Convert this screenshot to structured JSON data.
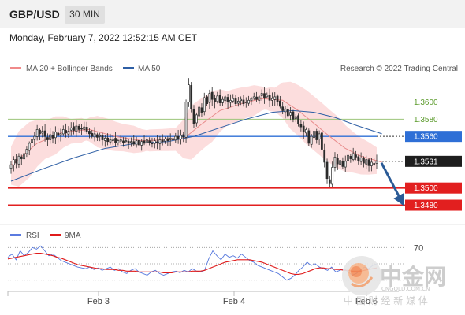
{
  "header": {
    "symbol": "GBP/USD",
    "timeframe": "30 MIN",
    "timestamp": "Monday, February 7, 2022 12:52:15 AM CET"
  },
  "colors": {
    "candle": "#2a2a2a",
    "candle_up": "#ffffff",
    "ma20": "#e88a8a",
    "bands_fill": "#fbd7d7",
    "ma50": "#2e5fa5",
    "resistance": "#9cc47a",
    "pivot": "#2e6fd6",
    "support": "#e21f1f",
    "arrow": "#2a5a96",
    "rsi": "#5577dd",
    "rsi_ma": "#e01b1b",
    "watermark": "#c8c8c8"
  },
  "chart_data": [
    {
      "type": "candlestick",
      "title": "GBP/USD",
      "timeframe": "30 MIN",
      "legend": [
        {
          "name": "MA 20 + Bollinger Bands",
          "color": "#f08a8a"
        },
        {
          "name": "MA 50",
          "color": "#2e5fa5"
        }
      ],
      "credit": "Research © 2022 Trading Central",
      "x_ticks": [
        "Feb 3",
        "Feb 4",
        "Feb 6"
      ],
      "ylim": [
        1.3464,
        1.3627
      ],
      "levels": [
        {
          "value": 1.36,
          "label": "1.3600",
          "kind": "resistance"
        },
        {
          "value": 1.358,
          "label": "1.3580",
          "kind": "resistance"
        },
        {
          "value": 1.356,
          "label": "1.3560",
          "kind": "pivot"
        },
        {
          "value": 1.3531,
          "label": "1.3531",
          "kind": "last"
        },
        {
          "value": 1.35,
          "label": "1.3500",
          "kind": "support"
        },
        {
          "value": 1.348,
          "label": "1.3480",
          "kind": "support"
        }
      ],
      "projection": {
        "from": 1.3531,
        "to": 1.3482
      },
      "candles": {
        "close": [
          1.3527,
          1.3533,
          1.3529,
          1.3537,
          1.3534,
          1.354,
          1.3545,
          1.3552,
          1.3556,
          1.356,
          1.3568,
          1.3563,
          1.3566,
          1.356,
          1.3556,
          1.3562,
          1.3558,
          1.3565,
          1.3561,
          1.3563,
          1.3568,
          1.3564,
          1.3566,
          1.357,
          1.3567,
          1.3572,
          1.3568,
          1.3569,
          1.3571,
          1.3566,
          1.3563,
          1.356,
          1.3563,
          1.3559,
          1.3561,
          1.3556,
          1.3558,
          1.3554,
          1.3556,
          1.3557,
          1.3553,
          1.3555,
          1.3556,
          1.3553,
          1.3555,
          1.3552,
          1.3554,
          1.3551,
          1.3555,
          1.355,
          1.3554,
          1.3552,
          1.3556,
          1.3553,
          1.3552,
          1.3555,
          1.3553,
          1.3556,
          1.3554,
          1.3557,
          1.3555,
          1.3558,
          1.3556,
          1.356,
          1.3557,
          1.3561,
          1.3559,
          1.36,
          1.362,
          1.3592,
          1.3575,
          1.3585,
          1.3594,
          1.3588,
          1.3605,
          1.3598,
          1.361,
          1.3603,
          1.36,
          1.3607,
          1.3599,
          1.3603,
          1.3606,
          1.36,
          1.3602,
          1.3604,
          1.3598,
          1.3601,
          1.3603,
          1.3598,
          1.36,
          1.3602,
          1.3604,
          1.3606,
          1.3603,
          1.3606,
          1.361,
          1.3605,
          1.3608,
          1.3602,
          1.3604,
          1.3606,
          1.36,
          1.3595,
          1.359,
          1.3592,
          1.3584,
          1.3588,
          1.358,
          1.3583,
          1.3575,
          1.3571,
          1.3565,
          1.3568,
          1.3552,
          1.356,
          1.3566,
          1.3556,
          1.3563,
          1.3545,
          1.353,
          1.3511,
          1.3505,
          1.3524,
          1.3536,
          1.3528,
          1.3532,
          1.3525,
          1.3531,
          1.3538,
          1.3534,
          1.354,
          1.3536,
          1.3532,
          1.3535,
          1.3529,
          1.3533,
          1.3526,
          1.353,
          1.3528,
          1.3531
        ],
        "ranges": [
          {
            "from": 0,
            "to": 66,
            "mid": 1.355
          },
          {
            "from": 67,
            "to": 105,
            "mid": 1.3598
          },
          {
            "from": 106,
            "to": 142,
            "mid": 1.354
          }
        ]
      },
      "ma20": [
        [
          0,
          1.3526
        ],
        [
          10,
          1.3552
        ],
        [
          20,
          1.3565
        ],
        [
          30,
          1.3568
        ],
        [
          40,
          1.356
        ],
        [
          50,
          1.3555
        ],
        [
          60,
          1.3556
        ],
        [
          66,
          1.3557
        ],
        [
          72,
          1.3572
        ],
        [
          80,
          1.359
        ],
        [
          88,
          1.3598
        ],
        [
          96,
          1.3604
        ],
        [
          104,
          1.3602
        ],
        [
          110,
          1.359
        ],
        [
          116,
          1.3575
        ],
        [
          122,
          1.356
        ],
        [
          128,
          1.3546
        ],
        [
          134,
          1.3537
        ],
        [
          142,
          1.353
        ]
      ],
      "ma50": [
        [
          0,
          1.3508
        ],
        [
          12,
          1.3522
        ],
        [
          24,
          1.3535
        ],
        [
          36,
          1.3546
        ],
        [
          48,
          1.3552
        ],
        [
          60,
          1.3554
        ],
        [
          70,
          1.356
        ],
        [
          80,
          1.357
        ],
        [
          90,
          1.358
        ],
        [
          100,
          1.3588
        ],
        [
          108,
          1.359
        ],
        [
          116,
          1.3588
        ],
        [
          124,
          1.3582
        ],
        [
          132,
          1.3573
        ],
        [
          142,
          1.3563
        ]
      ]
    },
    {
      "type": "line",
      "legend": [
        {
          "name": "RSI",
          "color": "#5b7be0"
        },
        {
          "name": "9MA",
          "color": "#e01b1b"
        }
      ],
      "ylim": [
        20,
        80
      ],
      "y_ticks": [
        {
          "value": 70,
          "label": "70"
        }
      ],
      "reference_lines": [
        70,
        50,
        30
      ],
      "series": [
        {
          "name": "RSI",
          "values": [
            58,
            62,
            55,
            66,
            60,
            64,
            70,
            68,
            72,
            66,
            60,
            62,
            58,
            54,
            52,
            50,
            48,
            46,
            45,
            44,
            46,
            43,
            45,
            42,
            44,
            46,
            42,
            44,
            40,
            38,
            42,
            44,
            40,
            38,
            36,
            40,
            42,
            38,
            36,
            38,
            40,
            41,
            39,
            42,
            40,
            44,
            41,
            40,
            42,
            56,
            66,
            60,
            55,
            62,
            58,
            60,
            57,
            62,
            58,
            54,
            52,
            48,
            46,
            44,
            42,
            40,
            38,
            34,
            30,
            32,
            36,
            42,
            46,
            52,
            48,
            50,
            46,
            44,
            42,
            46,
            40,
            42,
            44,
            40,
            36,
            38,
            42,
            46,
            44,
            48,
            50
          ]
        },
        {
          "name": "9MA",
          "values": [
            56,
            57,
            58,
            59,
            60,
            61,
            62,
            63,
            63,
            62,
            61,
            60,
            58,
            57,
            55,
            53,
            51,
            49,
            48,
            47,
            46,
            45,
            44,
            44,
            43,
            43,
            43,
            42,
            42,
            41,
            41,
            41,
            40,
            40,
            40,
            40,
            40,
            40,
            39,
            39,
            39,
            40,
            40,
            40,
            40,
            41,
            41,
            41,
            42,
            44,
            46,
            48,
            50,
            52,
            53,
            54,
            55,
            55,
            55,
            55,
            54,
            53,
            52,
            50,
            48,
            46,
            44,
            42,
            40,
            38,
            37,
            37,
            38,
            40,
            42,
            44,
            45,
            45,
            44,
            44,
            43,
            43,
            42,
            42,
            41,
            41,
            41,
            42,
            43,
            44,
            45
          ]
        }
      ]
    }
  ],
  "watermark": {
    "brand": "中金网",
    "domain": "CNGOLD.COM.CN",
    "slogan": "中 国 财 经 新 媒 体"
  }
}
